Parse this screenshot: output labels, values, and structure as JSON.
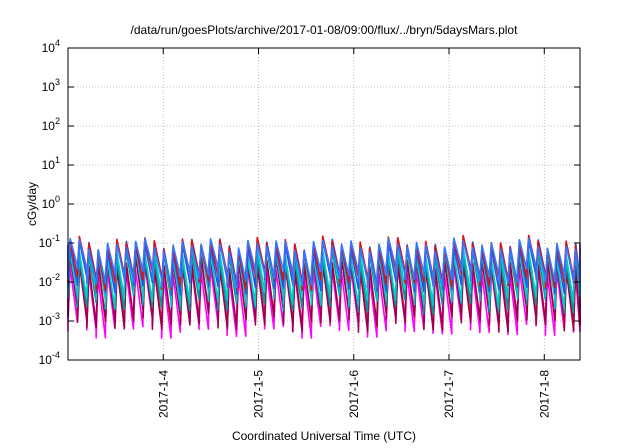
{
  "chart_data": {
    "type": "line",
    "title": "/data/run/goesPlots/archive/2017-01-08/09:00/flux/../bryn/5daysMars.plot",
    "xlabel": "Coordinated Universal Time (UTC)",
    "ylabel": "cGy/day",
    "y_scale": "log",
    "ylim": [
      0.0001,
      10000
    ],
    "y_ticks": [
      {
        "value": 0.0001,
        "base": "10",
        "exp": "-4"
      },
      {
        "value": 0.001,
        "base": "10",
        "exp": "-3"
      },
      {
        "value": 0.01,
        "base": "10",
        "exp": "-2"
      },
      {
        "value": 0.1,
        "base": "10",
        "exp": "-1"
      },
      {
        "value": 1,
        "base": "10",
        "exp": "0"
      },
      {
        "value": 10,
        "base": "10",
        "exp": "1"
      },
      {
        "value": 100,
        "base": "10",
        "exp": "2"
      },
      {
        "value": 1000,
        "base": "10",
        "exp": "3"
      },
      {
        "value": 10000,
        "base": "10",
        "exp": "4"
      }
    ],
    "xlim": [
      "2017-01-03T00:00",
      "2017-01-08T09:00"
    ],
    "x_ticks": [
      {
        "value": "2017-01-04T00:00",
        "label": "2017-1-4"
      },
      {
        "value": "2017-01-05T00:00",
        "label": "2017-1-5"
      },
      {
        "value": "2017-01-06T00:00",
        "label": "2017-1-6"
      },
      {
        "value": "2017-01-07T00:00",
        "label": "2017-1-7"
      },
      {
        "value": "2017-01-08T00:00",
        "label": "2017-1-8"
      }
    ],
    "grid": true,
    "series": [
      {
        "color": "#ff00ff",
        "peak": 0.02,
        "trough": 0.0007
      },
      {
        "color": "#dd2277",
        "peak": 0.035,
        "trough": 0.0013
      },
      {
        "color": "#a0004a",
        "peak": 0.03,
        "trough": 0.001
      },
      {
        "color": "#009a9a",
        "peak": 0.05,
        "trough": 0.003
      },
      {
        "color": "#00cccc",
        "peak": 0.06,
        "trough": 0.004
      },
      {
        "color": "#2255ee",
        "peak": 0.085,
        "trough": 0.009
      },
      {
        "color": "#dd1111",
        "peak": 0.1,
        "trough": 0.012
      },
      {
        "color": "#3377ff",
        "peak": 0.09,
        "trough": 0.014
      }
    ],
    "sawtooth_count": 55
  }
}
